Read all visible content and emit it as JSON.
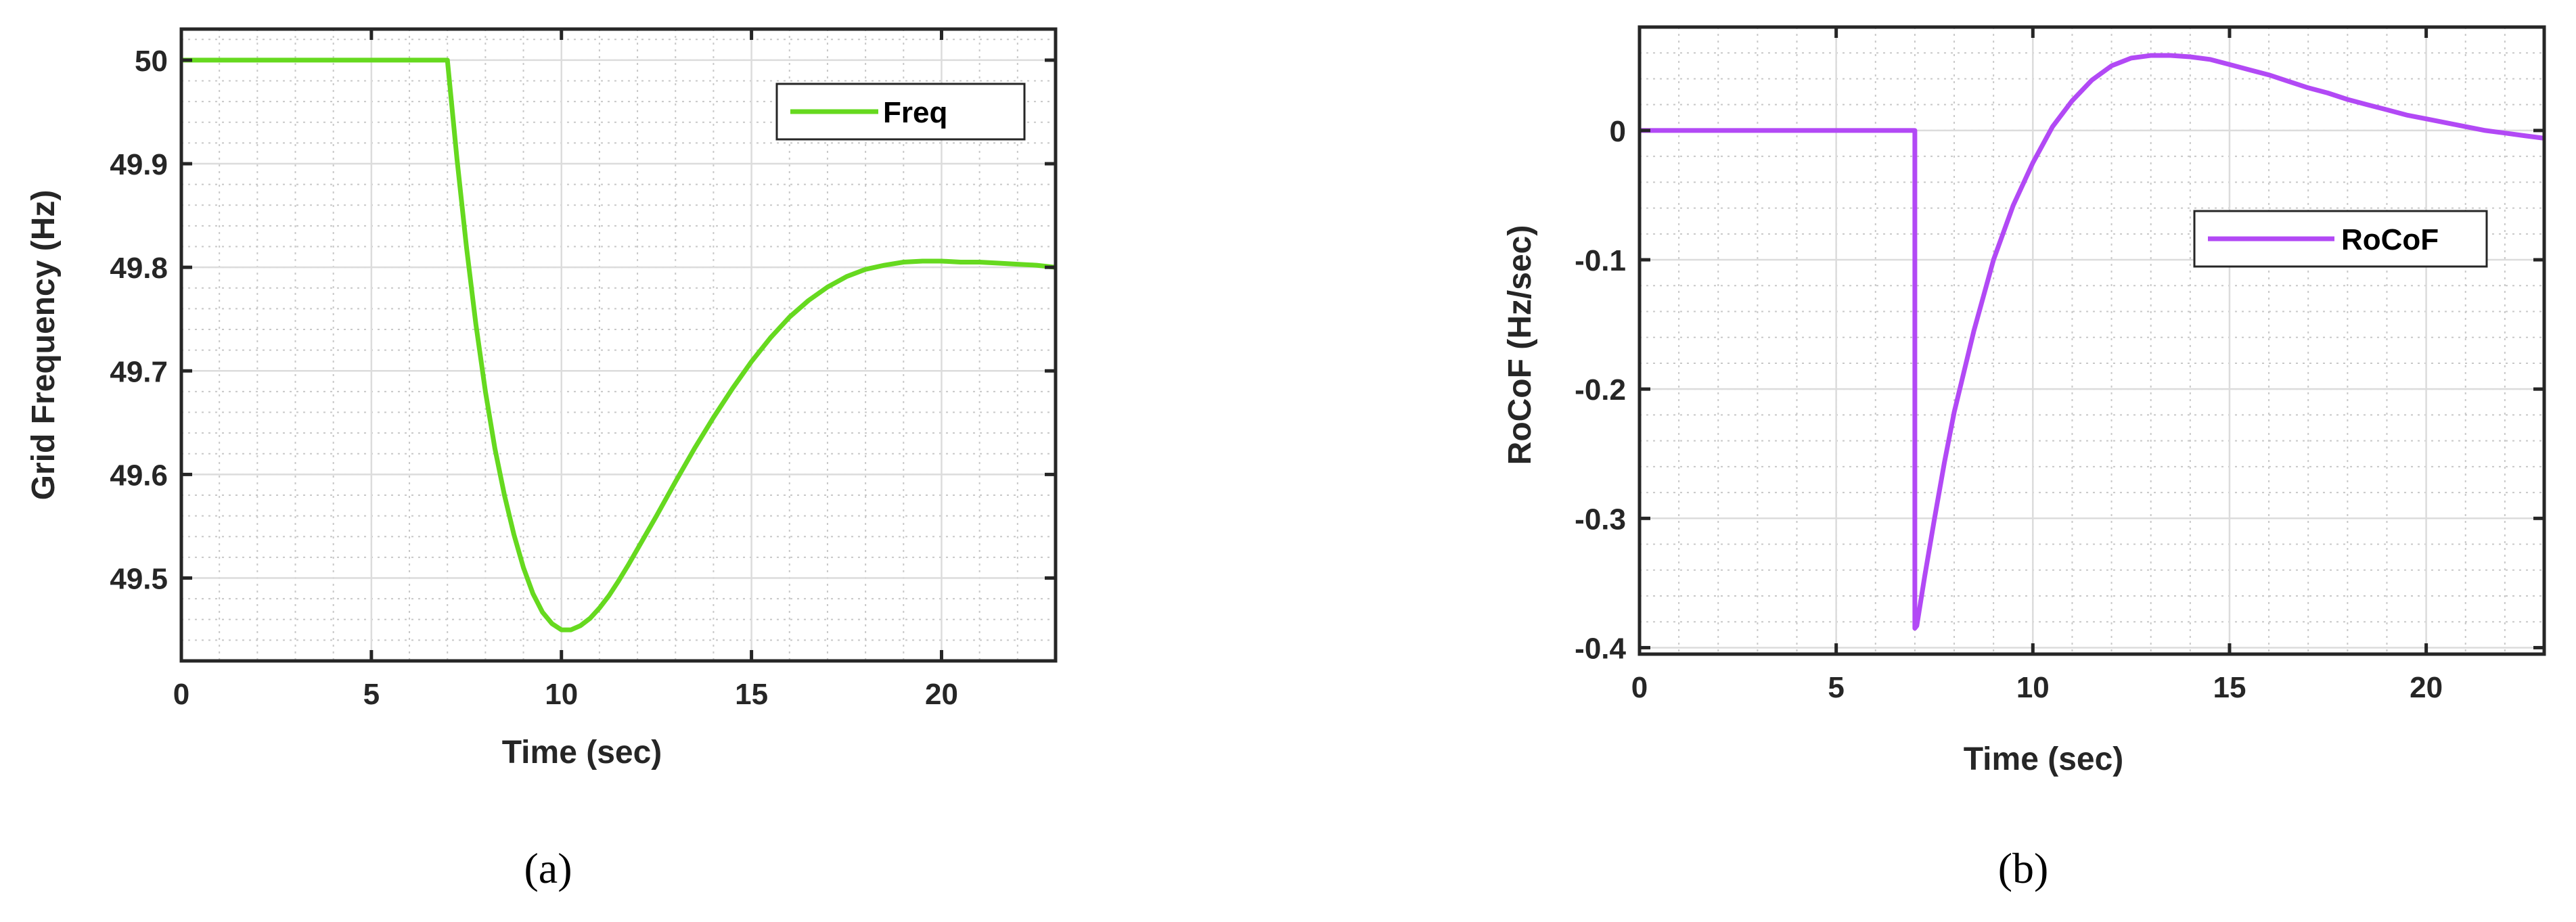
{
  "chart_data": [
    {
      "type": "line",
      "caption": "(a)",
      "xlabel": "Time (sec)",
      "ylabel": "Grid Frequency (Hz)",
      "xlim": [
        0,
        23
      ],
      "ylim": [
        49.42,
        50.03
      ],
      "xticks": [
        0,
        5,
        10,
        15,
        20
      ],
      "yticks": [
        49.5,
        49.6,
        49.7,
        49.8,
        49.9,
        50
      ],
      "ytick_labels": [
        "49.5",
        "49.6",
        "49.7",
        "49.8",
        "49.9",
        "50"
      ],
      "grid": true,
      "minor_grid": true,
      "legend_position": "top-right",
      "series": [
        {
          "name": "Freq",
          "color": "#66d91f",
          "x": [
            0,
            7.0,
            7.25,
            7.5,
            7.75,
            8.0,
            8.25,
            8.5,
            8.75,
            9.0,
            9.25,
            9.5,
            9.75,
            10.0,
            10.25,
            10.5,
            10.75,
            11.0,
            11.25,
            11.5,
            11.75,
            12.0,
            12.5,
            13.0,
            13.5,
            14.0,
            14.5,
            15.0,
            15.5,
            16.0,
            16.5,
            17.0,
            17.5,
            18.0,
            18.5,
            19.0,
            19.5,
            20.0,
            20.5,
            21.0,
            21.5,
            22.0,
            22.5,
            23.0
          ],
          "y": [
            50.0,
            50.0,
            49.905,
            49.82,
            49.745,
            49.68,
            49.625,
            49.58,
            49.542,
            49.51,
            49.485,
            49.467,
            49.456,
            49.45,
            49.45,
            49.454,
            49.461,
            49.471,
            49.483,
            49.497,
            49.512,
            49.528,
            49.56,
            49.593,
            49.625,
            49.655,
            49.683,
            49.709,
            49.732,
            49.752,
            49.768,
            49.781,
            49.791,
            49.798,
            49.802,
            49.805,
            49.806,
            49.806,
            49.805,
            49.805,
            49.804,
            49.803,
            49.802,
            49.8
          ]
        }
      ]
    },
    {
      "type": "line",
      "caption": "(b)",
      "xlabel": "Time (sec)",
      "ylabel": "RoCoF (Hz/sec)",
      "xlim": [
        0,
        23
      ],
      "ylim": [
        -0.405,
        0.08
      ],
      "xticks": [
        0,
        5,
        10,
        15,
        20
      ],
      "yticks": [
        -0.4,
        -0.3,
        -0.2,
        -0.1,
        0
      ],
      "ytick_labels": [
        "-0.4",
        "-0.3",
        "-0.2",
        "-0.1",
        "0"
      ],
      "grid": true,
      "minor_grid": true,
      "legend_position": "top-right",
      "series": [
        {
          "name": "RoCoF",
          "color": "#b249f5",
          "x": [
            0,
            7.0,
            7.0,
            7.05,
            7.25,
            7.5,
            7.75,
            8.0,
            8.5,
            9.0,
            9.5,
            10.0,
            10.5,
            11.0,
            11.5,
            12.0,
            12.5,
            13.0,
            13.5,
            14.0,
            14.5,
            15.0,
            15.5,
            16.0,
            16.5,
            17.0,
            17.5,
            18.0,
            18.5,
            19.0,
            19.5,
            20.0,
            20.5,
            21.0,
            21.5,
            22.0,
            22.5,
            23.0
          ],
          "y": [
            0,
            0,
            -0.385,
            -0.383,
            -0.345,
            -0.3,
            -0.257,
            -0.218,
            -0.155,
            -0.1,
            -0.058,
            -0.025,
            0.003,
            0.023,
            0.039,
            0.05,
            0.056,
            0.058,
            0.058,
            0.057,
            0.055,
            0.051,
            0.047,
            0.043,
            0.038,
            0.033,
            0.029,
            0.024,
            0.02,
            0.016,
            0.012,
            0.009,
            0.006,
            0.003,
            0.0,
            -0.002,
            -0.004,
            -0.006
          ]
        }
      ]
    }
  ]
}
